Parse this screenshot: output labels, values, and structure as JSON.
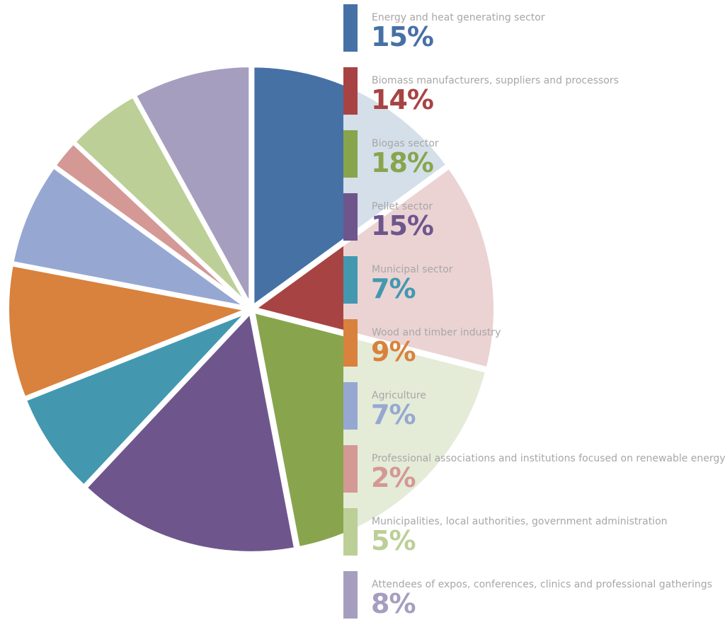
{
  "chart_data": {
    "type": "pie",
    "title": "",
    "slices": [
      {
        "label": "Energy and heat generating sector",
        "value_label": "15%",
        "value": 15,
        "color": "#4671a5",
        "color_light": "#d4dfe9"
      },
      {
        "label": "Biomass manufacturers, suppliers and processors",
        "value_label": "14%",
        "value": 14,
        "color": "#a74443",
        "color_light": "#ebd3d3"
      },
      {
        "label": "Biogas sector",
        "value_label": "18%",
        "value": 18,
        "color": "#88a54e",
        "color_light": "#e4ebd7"
      },
      {
        "label": "Pellet sector",
        "value_label": "15%",
        "value": 15,
        "color": "#6e568d",
        "color_light": "#6e568d"
      },
      {
        "label": "Municipal sector",
        "value_label": "7%",
        "value": 7,
        "color": "#4398b0",
        "color_light": "#4398b0"
      },
      {
        "label": "Wood and timber industry",
        "value_label": "9%",
        "value": 9,
        "color": "#d8823d",
        "color_light": "#d8823d"
      },
      {
        "label": "Agriculture",
        "value_label": "7%",
        "value": 7,
        "color": "#96a8d2",
        "color_light": "#96a8d2"
      },
      {
        "label": "Professional associations and institutions focused on renewable energy",
        "value_label": "2%",
        "value": 2,
        "color": "#d49895",
        "color_light": "#d49895"
      },
      {
        "label": "Municipalities, local authorities, government administration",
        "value_label": "5%",
        "value": 5,
        "color": "#bccf97",
        "color_light": "#bccf97"
      },
      {
        "label": "Attendees of expos, conferences, clinics and professional gatherings",
        "value_label": "8%",
        "value": 8,
        "color": "#a69ebf",
        "color_light": "#a69ebf"
      }
    ]
  }
}
